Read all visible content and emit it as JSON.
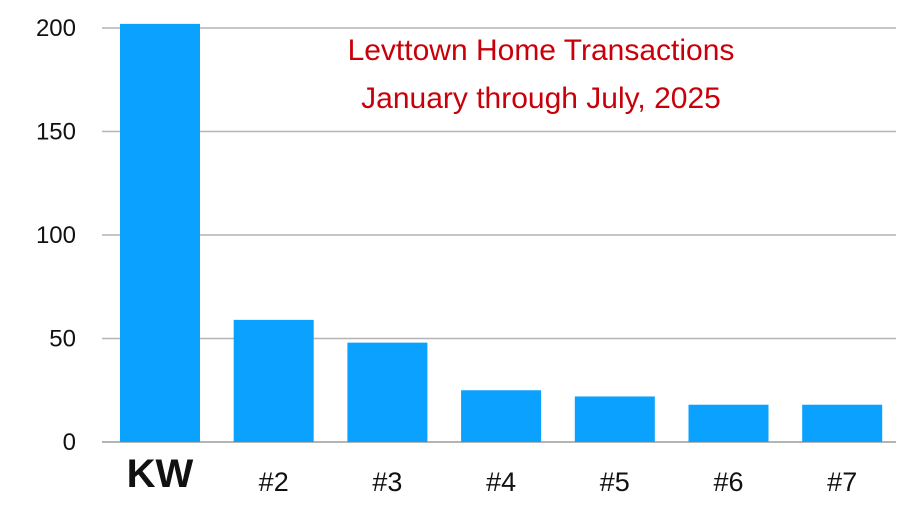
{
  "chart_data": {
    "type": "bar",
    "title_lines": [
      "Levttown Home Transactions",
      "January through July, 2025"
    ],
    "categories": [
      "KW",
      "#2",
      "#3",
      "#4",
      "#5",
      "#6",
      "#7"
    ],
    "values": [
      202,
      59,
      48,
      25,
      22,
      18,
      18
    ],
    "highlight_category": "KW",
    "ylim": [
      0,
      200
    ],
    "yticks": [
      0,
      50,
      100,
      150,
      200
    ],
    "grid": true,
    "colors": {
      "bar": "#0ba1ff",
      "title": "#c8000a",
      "highlight_label": "#c8000a",
      "grid": "#b4b4b4",
      "text": "#111111"
    }
  }
}
